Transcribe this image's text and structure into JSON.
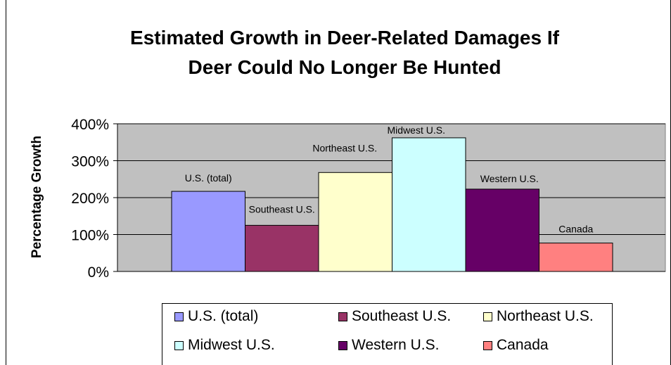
{
  "chart_data": {
    "type": "bar",
    "title_lines": [
      "Estimated Growth in Deer-Related Damages If",
      "Deer Could No Longer Be Hunted"
    ],
    "xlabel": "",
    "ylabel": "Percentage Growth",
    "ylim": [
      0,
      400
    ],
    "yticks": [
      "0%",
      "100%",
      "200%",
      "300%",
      "400%"
    ],
    "ytick_values": [
      0,
      100,
      200,
      300,
      400
    ],
    "grid": true,
    "legend_position": "bottom",
    "plot_background": "#c0c0c0",
    "series": [
      {
        "name": "U.S. (total)",
        "value": 217,
        "color": "#9999ff"
      },
      {
        "name": "Southeast U.S.",
        "value": 125,
        "color": "#993366"
      },
      {
        "name": "Northeast U.S.",
        "value": 268,
        "color": "#ffffcc"
      },
      {
        "name": "Midwest U.S.",
        "value": 362,
        "color": "#ccffff"
      },
      {
        "name": "Western U.S.",
        "value": 223,
        "color": "#660066"
      },
      {
        "name": "Canada",
        "value": 77,
        "color": "#ff8080"
      }
    ]
  }
}
